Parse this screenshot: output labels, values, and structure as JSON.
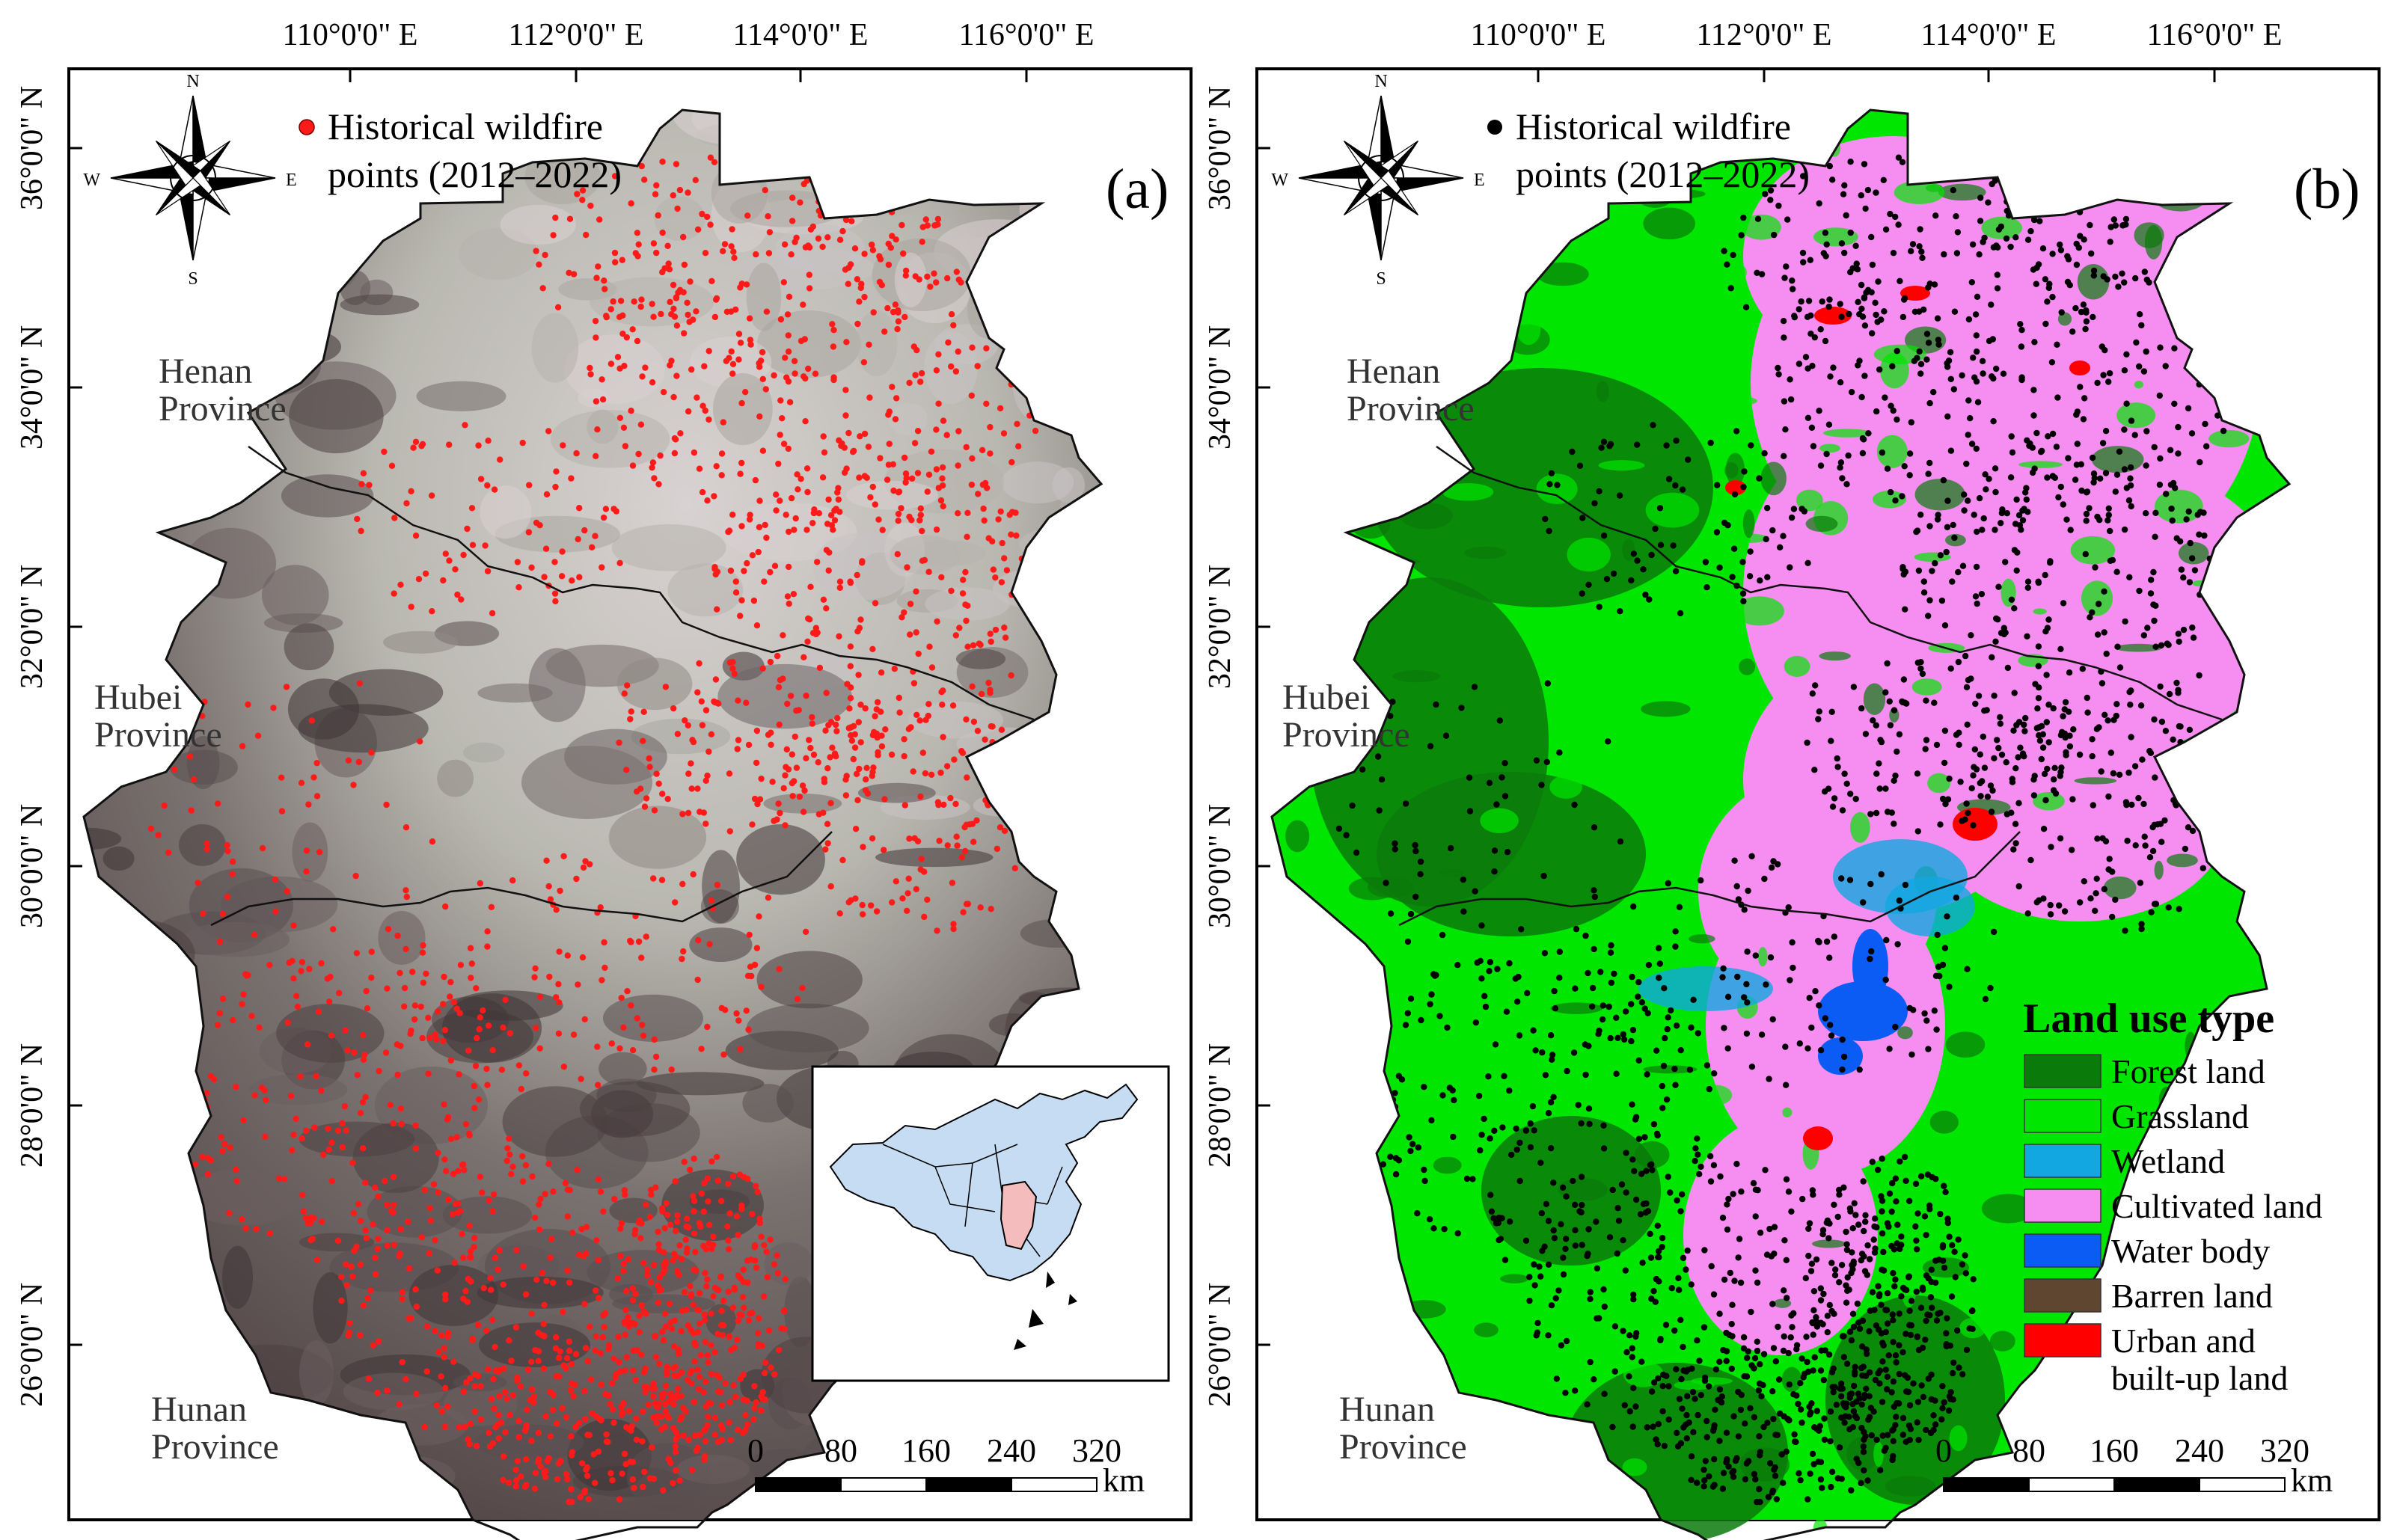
{
  "panels": [
    {
      "id": "a",
      "panel_label": "(a)",
      "legend_points_line1": "Historical wildfire",
      "legend_points_line2": "points (2012–2022)",
      "point_color": "#ff1a1a",
      "basemap": "satellite false-color imagery",
      "inset_map": "china-locator-map"
    },
    {
      "id": "b",
      "panel_label": "(b)",
      "legend_points_line1": "Historical wildfire",
      "legend_points_line2": "points (2012–2022)",
      "point_color": "#000000",
      "basemap": "land use classification"
    }
  ],
  "lon_labels": [
    "110°0'0\" E",
    "112°0'0\" E",
    "114°0'0\" E",
    "116°0'0\" E"
  ],
  "lat_labels": [
    "36°0'0\" N",
    "34°0'0\" N",
    "32°0'0\" N",
    "30°0'0\" N",
    "28°0'0\" N",
    "26°0'0\" N"
  ],
  "provinces": {
    "henan": [
      "Henan",
      "Province"
    ],
    "hubei": [
      "Hubei",
      "Province"
    ],
    "hunan": [
      "Hunan",
      "Province"
    ]
  },
  "compass": {
    "n": "N",
    "s": "S",
    "e": "E",
    "w": "W"
  },
  "scale_bar": {
    "ticks": [
      "0",
      "80",
      "160",
      "240",
      "320"
    ],
    "unit": "km"
  },
  "land_use_legend": {
    "title": "Land use type",
    "items": [
      {
        "label": "Forest land",
        "color": "#0a7a0a"
      },
      {
        "label": "Grassland",
        "color": "#00e600"
      },
      {
        "label": "Wetland",
        "color": "#12a7e0"
      },
      {
        "label": "Cultivated land",
        "color": "#f58ef0"
      },
      {
        "label": "Water body",
        "color": "#0a5cf5"
      },
      {
        "label": "Barren land",
        "color": "#5e4630"
      },
      {
        "label": "Urban and",
        "label2": "built-up land",
        "color": "#ff0000"
      }
    ]
  }
}
